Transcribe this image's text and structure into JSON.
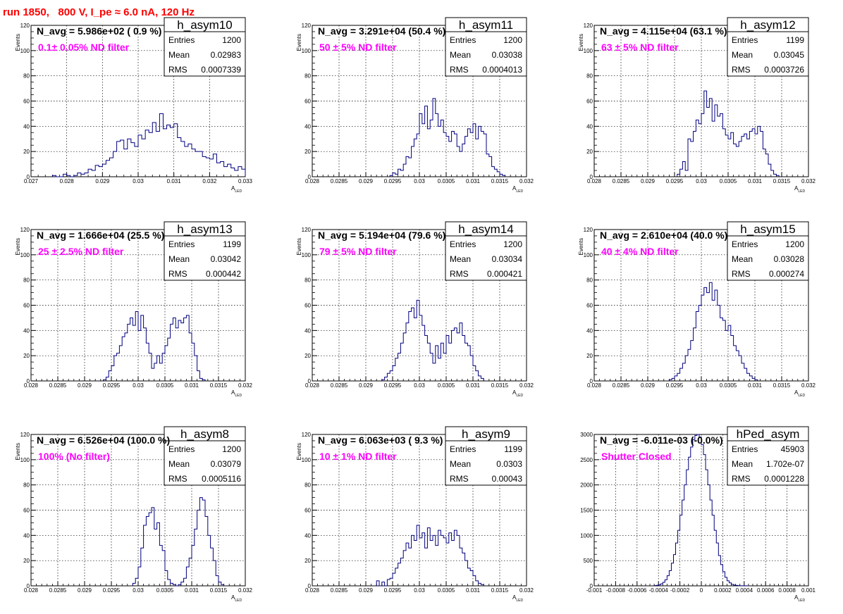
{
  "page_title": "run 1850,   800 V, I_pe ≈ 6.0 nA, 120 Hz",
  "colors": {
    "title": "#ff0000",
    "annotation": "#ff00ff",
    "histogram": "#00007f",
    "grid": "#000000"
  },
  "chart_data": [
    {
      "type": "histogram",
      "name": "h_asym10",
      "annotation": "N_avg = 5.986e+02 ( 0.9 %)",
      "filter": "0.1± 0.05% ND filter",
      "stats": {
        "entries_label": "Entries",
        "entries": "1200",
        "mean_label": "Mean",
        "mean": "0.02983",
        "rms_label": "RMS",
        "rms": "0.0007339"
      },
      "xlabel": "A",
      "xlabel_sub": "LED",
      "ylabel": "Events",
      "xlim": [
        0.027,
        0.033
      ],
      "ylim": [
        0,
        120
      ],
      "xticks": [
        0.027,
        0.028,
        0.029,
        0.03,
        0.031,
        0.032,
        0.033
      ],
      "xtick_labels": [
        "0.027",
        "0.028",
        "0.029",
        "0.03",
        "0.031",
        "0.032",
        "0.033"
      ],
      "yticks": [
        0,
        20,
        40,
        60,
        80,
        100,
        120
      ],
      "ytick_labels": [
        "0",
        "20",
        "40",
        "60",
        "80",
        "100",
        "120"
      ],
      "bin_start": 0.0276,
      "bin_width": 0.0001,
      "counts": [
        1,
        0,
        0,
        2,
        1,
        0,
        1,
        3,
        2,
        3,
        6,
        5,
        9,
        8,
        10,
        13,
        15,
        20,
        28,
        29,
        22,
        30,
        27,
        24,
        33,
        30,
        37,
        35,
        43,
        36,
        50,
        38,
        41,
        39,
        42,
        31,
        28,
        24,
        26,
        22,
        20,
        20,
        16,
        15,
        14,
        18,
        11,
        12,
        8,
        10,
        7,
        5,
        8,
        6,
        5,
        6,
        4,
        4,
        3,
        2,
        2,
        3,
        1,
        2,
        1,
        1,
        0,
        0
      ]
    },
    {
      "type": "histogram",
      "name": "h_asym11",
      "annotation": "N_avg = 3.291e+04 (50.4 %)",
      "filter": "50 ± 5% ND filter",
      "stats": {
        "entries_label": "Entries",
        "entries": "1200",
        "mean_label": "Mean",
        "mean": "0.03038",
        "rms_label": "RMS",
        "rms": "0.0004013"
      },
      "xlabel": "A",
      "xlabel_sub": "LED",
      "ylabel": "Events",
      "xlim": [
        0.028,
        0.032
      ],
      "ylim": [
        0,
        120
      ],
      "xticks": [
        0.028,
        0.0285,
        0.029,
        0.0295,
        0.03,
        0.0305,
        0.031,
        0.0315,
        0.032
      ],
      "xtick_labels": [
        "0.028",
        "0.0285",
        "0.029",
        "0.0295",
        "0.03",
        "0.0305",
        "0.031",
        "0.0315",
        "0.032"
      ],
      "yticks": [
        0,
        20,
        40,
        60,
        80,
        100,
        120
      ],
      "ytick_labels": [
        "0",
        "20",
        "40",
        "60",
        "80",
        "100",
        "120"
      ],
      "bin_start": 0.02945,
      "bin_width": 5e-05,
      "counts": [
        1,
        3,
        2,
        6,
        5,
        10,
        16,
        15,
        24,
        30,
        34,
        50,
        42,
        56,
        38,
        45,
        62,
        50,
        40,
        45,
        35,
        32,
        28,
        36,
        34,
        24,
        20,
        26,
        32,
        38,
        35,
        42,
        30,
        40,
        36,
        34,
        18,
        16,
        8,
        6,
        4,
        2,
        1
      ]
    },
    {
      "type": "histogram",
      "name": "h_asym12",
      "annotation": "N_avg = 4.115e+04 (63.1 %)",
      "filter": "63 ± 5% ND filter",
      "stats": {
        "entries_label": "Entries",
        "entries": "1199",
        "mean_label": "Mean",
        "mean": "0.03045",
        "rms_label": "RMS",
        "rms": "0.0003726"
      },
      "xlabel": "A",
      "xlabel_sub": "LED",
      "ylabel": "Events",
      "xlim": [
        0.028,
        0.032
      ],
      "ylim": [
        0,
        120
      ],
      "xticks": [
        0.028,
        0.0285,
        0.029,
        0.0295,
        0.03,
        0.0305,
        0.031,
        0.0315,
        0.032
      ],
      "xtick_labels": [
        "0.028",
        "0.0285",
        "0.029",
        "0.0295",
        "0.03",
        "0.0305",
        "0.031",
        "0.0315",
        "0.032"
      ],
      "yticks": [
        0,
        20,
        40,
        60,
        80,
        100,
        120
      ],
      "ytick_labels": [
        "0",
        "20",
        "40",
        "60",
        "80",
        "100",
        "120"
      ],
      "bin_start": 0.02955,
      "bin_width": 5e-05,
      "counts": [
        2,
        6,
        12,
        5,
        30,
        28,
        36,
        45,
        42,
        50,
        68,
        55,
        62,
        44,
        57,
        48,
        50,
        38,
        33,
        30,
        35,
        26,
        24,
        28,
        32,
        34,
        30,
        36,
        38,
        34,
        40,
        36,
        22,
        18,
        10,
        5,
        2,
        1
      ]
    },
    {
      "type": "histogram",
      "name": "h_asym13",
      "annotation": "N_avg = 1.666e+04 (25.5 %)",
      "filter": "25 ± 2.5% ND filter",
      "stats": {
        "entries_label": "Entries",
        "entries": "1199",
        "mean_label": "Mean",
        "mean": "0.03042",
        "rms_label": "RMS",
        "rms": "0.000442"
      },
      "xlabel": "A",
      "xlabel_sub": "LED",
      "ylabel": "Events",
      "xlim": [
        0.028,
        0.032
      ],
      "ylim": [
        0,
        120
      ],
      "xticks": [
        0.028,
        0.0285,
        0.029,
        0.0295,
        0.03,
        0.0305,
        0.031,
        0.0315,
        0.032
      ],
      "xtick_labels": [
        "0.028",
        "0.0285",
        "0.029",
        "0.0295",
        "0.03",
        "0.0305",
        "0.031",
        "0.0315",
        "0.032"
      ],
      "yticks": [
        0,
        20,
        40,
        60,
        80,
        100,
        120
      ],
      "ytick_labels": [
        "0",
        "20",
        "40",
        "60",
        "80",
        "100",
        "120"
      ],
      "bin_start": 0.02935,
      "bin_width": 5e-05,
      "counts": [
        1,
        3,
        8,
        12,
        20,
        22,
        28,
        35,
        38,
        45,
        50,
        44,
        55,
        40,
        52,
        42,
        30,
        22,
        10,
        14,
        20,
        14,
        22,
        28,
        34,
        45,
        50,
        42,
        48,
        46,
        50,
        52,
        38,
        30,
        20,
        8,
        2,
        1
      ]
    },
    {
      "type": "histogram",
      "name": "h_asym14",
      "annotation": "N_avg = 5.194e+04 (79.6 %)",
      "filter": "79 ± 5% ND filter",
      "stats": {
        "entries_label": "Entries",
        "entries": "1200",
        "mean_label": "Mean",
        "mean": "0.03034",
        "rms_label": "RMS",
        "rms": "0.000421"
      },
      "xlabel": "A",
      "xlabel_sub": "LED",
      "ylabel": "Events",
      "xlim": [
        0.028,
        0.032
      ],
      "ylim": [
        0,
        120
      ],
      "xticks": [
        0.028,
        0.0285,
        0.029,
        0.0295,
        0.03,
        0.0305,
        0.031,
        0.0315,
        0.032
      ],
      "xtick_labels": [
        "0.028",
        "0.0285",
        "0.029",
        "0.0295",
        "0.03",
        "0.0305",
        "0.031",
        "0.0315",
        "0.032"
      ],
      "yticks": [
        0,
        20,
        40,
        60,
        80,
        100,
        120
      ],
      "ytick_labels": [
        "0",
        "20",
        "40",
        "60",
        "80",
        "100",
        "120"
      ],
      "bin_start": 0.0293,
      "bin_width": 5e-05,
      "counts": [
        1,
        3,
        6,
        8,
        12,
        18,
        22,
        30,
        38,
        46,
        55,
        58,
        50,
        64,
        52,
        44,
        36,
        30,
        22,
        14,
        28,
        18,
        30,
        22,
        36,
        30,
        40,
        42,
        38,
        46,
        36,
        30,
        28,
        20,
        12,
        8,
        4,
        2
      ]
    },
    {
      "type": "histogram",
      "name": "h_asym15",
      "annotation": "N_avg = 2.610e+04 (40.0 %)",
      "filter": "40 ± 4% ND filter",
      "stats": {
        "entries_label": "Entries",
        "entries": "1200",
        "mean_label": "Mean",
        "mean": "0.03028",
        "rms_label": "RMS",
        "rms": "0.000274"
      },
      "xlabel": "A",
      "xlabel_sub": "LED",
      "ylabel": "Events",
      "xlim": [
        0.028,
        0.032
      ],
      "ylim": [
        0,
        120
      ],
      "xticks": [
        0.028,
        0.0285,
        0.029,
        0.0295,
        0.03,
        0.0305,
        0.031,
        0.0315,
        0.032
      ],
      "xtick_labels": [
        "0.028",
        "0.0285",
        "0.029",
        "0.0295",
        "0.03",
        "0.0305",
        "0.031",
        "0.0315",
        "0.032"
      ],
      "yticks": [
        0,
        20,
        40,
        60,
        80,
        100,
        120
      ],
      "ytick_labels": [
        "0",
        "20",
        "40",
        "60",
        "80",
        "100",
        "120"
      ],
      "bin_start": 0.0294,
      "bin_width": 5e-05,
      "counts": [
        1,
        2,
        4,
        6,
        10,
        14,
        20,
        25,
        32,
        42,
        55,
        60,
        68,
        74,
        70,
        78,
        64,
        72,
        60,
        50,
        48,
        40,
        44,
        36,
        28,
        24,
        20,
        14,
        10,
        6,
        4,
        2,
        1
      ]
    },
    {
      "type": "histogram",
      "name": "h_asym8",
      "annotation": "N_avg = 6.526e+04 (100.0 %)",
      "filter": "100% (No filter)",
      "stats": {
        "entries_label": "Entries",
        "entries": "1200",
        "mean_label": "Mean",
        "mean": "0.03079",
        "rms_label": "RMS",
        "rms": "0.0005116"
      },
      "xlabel": "A",
      "xlabel_sub": "LED",
      "ylabel": "Events",
      "xlim": [
        0.028,
        0.032
      ],
      "ylim": [
        0,
        120
      ],
      "xticks": [
        0.028,
        0.0285,
        0.029,
        0.0295,
        0.03,
        0.0305,
        0.031,
        0.0315,
        0.032
      ],
      "xtick_labels": [
        "0.028",
        "0.0285",
        "0.029",
        "0.0295",
        "0.03",
        "0.0305",
        "0.031",
        "0.0315",
        "0.032"
      ],
      "yticks": [
        0,
        20,
        40,
        60,
        80,
        100,
        120
      ],
      "ytick_labels": [
        "0",
        "20",
        "40",
        "60",
        "80",
        "100",
        "120"
      ],
      "bin_start": 0.0299,
      "bin_width": 5e-05,
      "counts": [
        2,
        6,
        15,
        30,
        48,
        55,
        58,
        62,
        45,
        50,
        32,
        28,
        12,
        5,
        2,
        1,
        0,
        1,
        3,
        6,
        15,
        22,
        32,
        45,
        60,
        70,
        68,
        55,
        40,
        30,
        20,
        8,
        3,
        1
      ]
    },
    {
      "type": "histogram",
      "name": "h_asym9",
      "annotation": "N_avg = 6.063e+03 ( 9.3 %)",
      "filter": "10 ± 1% ND filter",
      "stats": {
        "entries_label": "Entries",
        "entries": "1199",
        "mean_label": "Mean",
        "mean": "0.0303",
        "rms_label": "RMS",
        "rms": "0.00043"
      },
      "xlabel": "A",
      "xlabel_sub": "LED",
      "ylabel": "Events",
      "xlim": [
        0.028,
        0.032
      ],
      "ylim": [
        0,
        120
      ],
      "xticks": [
        0.028,
        0.0285,
        0.029,
        0.0295,
        0.03,
        0.0305,
        0.031,
        0.0315,
        0.032
      ],
      "xtick_labels": [
        "0.028",
        "0.0285",
        "0.029",
        "0.0295",
        "0.03",
        "0.0305",
        "0.031",
        "0.0315",
        "0.032"
      ],
      "yticks": [
        0,
        20,
        40,
        60,
        80,
        100,
        120
      ],
      "ytick_labels": [
        "0",
        "20",
        "40",
        "60",
        "80",
        "100",
        "120"
      ],
      "bin_start": 0.0292,
      "bin_width": 5e-05,
      "counts": [
        4,
        0,
        3,
        0,
        5,
        6,
        10,
        14,
        18,
        22,
        28,
        34,
        30,
        40,
        36,
        48,
        38,
        42,
        30,
        46,
        36,
        40,
        32,
        44,
        40,
        38,
        34,
        42,
        36,
        44,
        40,
        30,
        26,
        20,
        14,
        12,
        8,
        4,
        2,
        1
      ]
    },
    {
      "type": "histogram",
      "name": "hPed_asym",
      "annotation": "N_avg = -6.011e-03 (-0.0%)",
      "filter": "Shutter Closed",
      "stats": {
        "entries_label": "Entries",
        "entries": "45903",
        "mean_label": "Mean",
        "mean": "1.702e-07",
        "rms_label": "RMS",
        "rms": "0.0001228"
      },
      "xlabel": "A",
      "xlabel_sub": "LED",
      "ylabel": "",
      "xlim": [
        -0.001,
        0.001
      ],
      "ylim": [
        0,
        3000
      ],
      "xticks": [
        -0.001,
        -0.0008,
        -0.0006,
        -0.0004,
        -0.0002,
        0,
        0.0002,
        0.0004,
        0.0006,
        0.0008,
        0.001
      ],
      "xtick_labels": [
        "-0.001",
        "-0.0008",
        "-0.0006",
        "-0.0004",
        "-0.0002",
        "0",
        "0.0002",
        "0.0004",
        "0.0006",
        "0.0008",
        "0.001"
      ],
      "yticks": [
        0,
        500,
        1000,
        1500,
        2000,
        2500,
        3000
      ],
      "ytick_labels": [
        "0",
        "500",
        "1000",
        "1500",
        "2000",
        "2500",
        "3000"
      ],
      "bin_start": -0.00044,
      "bin_width": 2e-05,
      "counts": [
        5,
        10,
        20,
        40,
        70,
        120,
        200,
        300,
        450,
        620,
        850,
        1100,
        1400,
        1700,
        2000,
        2300,
        2550,
        2750,
        2900,
        2980,
        3000,
        2950,
        2800,
        2600,
        2300,
        2000,
        1700,
        1400,
        1100,
        850,
        600,
        420,
        280,
        170,
        100,
        60,
        30,
        15,
        8,
        4,
        2,
        1,
        1,
        0
      ]
    }
  ]
}
